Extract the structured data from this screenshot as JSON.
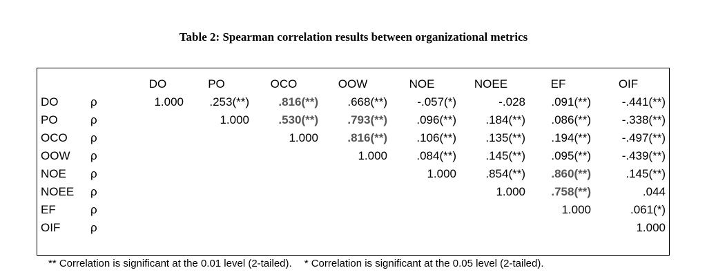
{
  "caption": "Table 2: Spearman correlation results between organizational metrics",
  "columns": [
    "DO",
    "PO",
    "OCO",
    "OOW",
    "NOE",
    "NOEE",
    "EF",
    "OIF"
  ],
  "stat_symbol": "ρ",
  "rows": [
    {
      "label": "DO",
      "cells": [
        {
          "v": "1.000"
        },
        {
          "v": ".253(**)"
        },
        {
          "v": ".816(**)",
          "b": true
        },
        {
          "v": ".668(**)"
        },
        {
          "v": "-.057(*)"
        },
        {
          "v": "-.028"
        },
        {
          "v": ".091(**)"
        },
        {
          "v": "-.441(**)"
        }
      ]
    },
    {
      "label": "PO",
      "cells": [
        {
          "v": ""
        },
        {
          "v": "1.000"
        },
        {
          "v": ".530(**)",
          "b": true
        },
        {
          "v": ".793(**)",
          "b": true
        },
        {
          "v": ".096(**)"
        },
        {
          "v": ".184(**)"
        },
        {
          "v": ".086(**)"
        },
        {
          "v": "-.338(**)"
        }
      ]
    },
    {
      "label": "OCO",
      "cells": [
        {
          "v": ""
        },
        {
          "v": ""
        },
        {
          "v": "1.000"
        },
        {
          "v": ".816(**)",
          "b": true
        },
        {
          "v": ".106(**)"
        },
        {
          "v": ".135(**)"
        },
        {
          "v": ".194(**)"
        },
        {
          "v": "-.497(**)"
        }
      ]
    },
    {
      "label": "OOW",
      "cells": [
        {
          "v": ""
        },
        {
          "v": ""
        },
        {
          "v": ""
        },
        {
          "v": "1.000"
        },
        {
          "v": ".084(**)"
        },
        {
          "v": ".145(**)"
        },
        {
          "v": ".095(**)"
        },
        {
          "v": "-.439(**)"
        }
      ]
    },
    {
      "label": "NOE",
      "cells": [
        {
          "v": ""
        },
        {
          "v": ""
        },
        {
          "v": ""
        },
        {
          "v": ""
        },
        {
          "v": "1.000"
        },
        {
          "v": ".854(**)"
        },
        {
          "v": ".860(**)",
          "b": true
        },
        {
          "v": ".145(**)"
        }
      ]
    },
    {
      "label": "NOEE",
      "cells": [
        {
          "v": ""
        },
        {
          "v": ""
        },
        {
          "v": ""
        },
        {
          "v": ""
        },
        {
          "v": ""
        },
        {
          "v": "1.000"
        },
        {
          "v": ".758(**)",
          "b": true
        },
        {
          "v": ".044"
        }
      ]
    },
    {
      "label": "EF",
      "cells": [
        {
          "v": ""
        },
        {
          "v": ""
        },
        {
          "v": ""
        },
        {
          "v": ""
        },
        {
          "v": ""
        },
        {
          "v": ""
        },
        {
          "v": "1.000"
        },
        {
          "v": ".061(*)"
        }
      ]
    },
    {
      "label": "OIF",
      "cells": [
        {
          "v": ""
        },
        {
          "v": ""
        },
        {
          "v": ""
        },
        {
          "v": ""
        },
        {
          "v": ""
        },
        {
          "v": ""
        },
        {
          "v": ""
        },
        {
          "v": "1.000"
        }
      ]
    }
  ],
  "footnotes": {
    "note1": "** Correlation is significant at the 0.01 level (2-tailed).",
    "note2": "* Correlation is significant at the 0.05 level (2-tailed)."
  }
}
